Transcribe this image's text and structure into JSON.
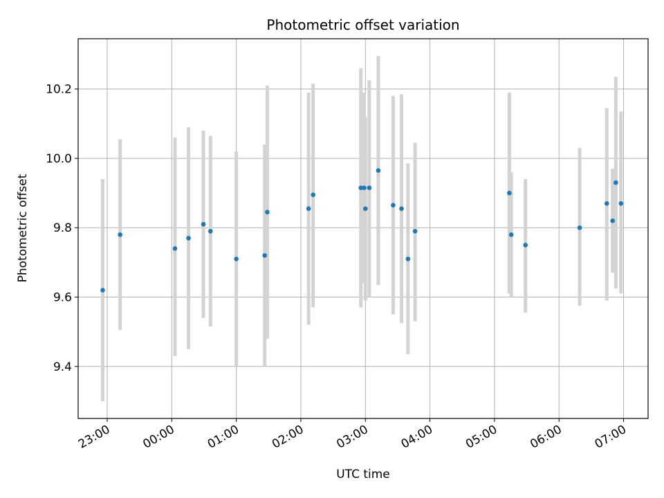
{
  "chart_data": {
    "type": "scatter",
    "title": "Photometric offset variation",
    "xlabel": "UTC time",
    "ylabel": "Photometric offset",
    "x_unit": "hours since 00:00 UTC",
    "xlim": [
      -1.45,
      7.38
    ],
    "ylim": [
      9.25,
      10.345
    ],
    "grid": true,
    "x_ticks": [
      {
        "value": -1,
        "label": "23:00"
      },
      {
        "value": 0,
        "label": "00:00"
      },
      {
        "value": 1,
        "label": "01:00"
      },
      {
        "value": 2,
        "label": "02:00"
      },
      {
        "value": 3,
        "label": "03:00"
      },
      {
        "value": 4,
        "label": "04:00"
      },
      {
        "value": 5,
        "label": "05:00"
      },
      {
        "value": 6,
        "label": "06:00"
      },
      {
        "value": 7,
        "label": "07:00"
      }
    ],
    "y_ticks": [
      {
        "value": 9.4,
        "label": "9.4"
      },
      {
        "value": 9.6,
        "label": "9.6"
      },
      {
        "value": 9.8,
        "label": "9.8"
      },
      {
        "value": 10.0,
        "label": "10.0"
      },
      {
        "value": 10.2,
        "label": "10.2"
      }
    ],
    "colors": {
      "point": "#1f77b4",
      "errorbar": "#d3d3d3",
      "grid": "#b0b0b0"
    },
    "series": [
      {
        "points": [
          {
            "x": -1.07,
            "y": 9.62,
            "lo": 9.3,
            "hi": 9.94
          },
          {
            "x": -0.8,
            "y": 9.78,
            "lo": 9.505,
            "hi": 10.055
          },
          {
            "x": 0.05,
            "y": 9.74,
            "lo": 9.43,
            "hi": 10.06
          },
          {
            "x": 0.26,
            "y": 9.77,
            "lo": 9.45,
            "hi": 10.09
          },
          {
            "x": 0.49,
            "y": 9.81,
            "lo": 9.54,
            "hi": 10.08
          },
          {
            "x": 0.6,
            "y": 9.79,
            "lo": 9.515,
            "hi": 10.065
          },
          {
            "x": 1.0,
            "y": 9.71,
            "lo": 9.4,
            "hi": 10.02
          },
          {
            "x": 1.44,
            "y": 9.72,
            "lo": 9.4,
            "hi": 10.04
          },
          {
            "x": 1.48,
            "y": 9.845,
            "lo": 9.48,
            "hi": 10.21
          },
          {
            "x": 2.12,
            "y": 9.855,
            "lo": 9.52,
            "hi": 10.19
          },
          {
            "x": 2.19,
            "y": 9.895,
            "lo": 9.57,
            "hi": 10.215
          },
          {
            "x": 2.93,
            "y": 9.915,
            "lo": 9.57,
            "hi": 10.26
          },
          {
            "x": 2.98,
            "y": 9.915,
            "lo": 9.64,
            "hi": 10.19
          },
          {
            "x": 3.0,
            "y": 9.855,
            "lo": 9.59,
            "hi": 10.12
          },
          {
            "x": 3.06,
            "y": 9.915,
            "lo": 9.6,
            "hi": 10.225
          },
          {
            "x": 3.2,
            "y": 9.965,
            "lo": 9.635,
            "hi": 10.295
          },
          {
            "x": 3.43,
            "y": 9.865,
            "lo": 9.55,
            "hi": 10.18
          },
          {
            "x": 3.56,
            "y": 9.855,
            "lo": 9.525,
            "hi": 10.185
          },
          {
            "x": 3.66,
            "y": 9.71,
            "lo": 9.435,
            "hi": 9.985
          },
          {
            "x": 3.77,
            "y": 9.79,
            "lo": 9.53,
            "hi": 10.045
          },
          {
            "x": 5.23,
            "y": 9.9,
            "lo": 9.61,
            "hi": 10.19
          },
          {
            "x": 5.26,
            "y": 9.78,
            "lo": 9.6,
            "hi": 9.96
          },
          {
            "x": 5.48,
            "y": 9.75,
            "lo": 9.555,
            "hi": 9.94
          },
          {
            "x": 6.32,
            "y": 9.8,
            "lo": 9.575,
            "hi": 10.03
          },
          {
            "x": 6.74,
            "y": 9.87,
            "lo": 9.59,
            "hi": 10.145
          },
          {
            "x": 6.83,
            "y": 9.82,
            "lo": 9.67,
            "hi": 9.97
          },
          {
            "x": 6.88,
            "y": 9.93,
            "lo": 9.625,
            "hi": 10.235
          },
          {
            "x": 6.96,
            "y": 9.87,
            "lo": 9.61,
            "hi": 10.135
          }
        ]
      }
    ]
  }
}
